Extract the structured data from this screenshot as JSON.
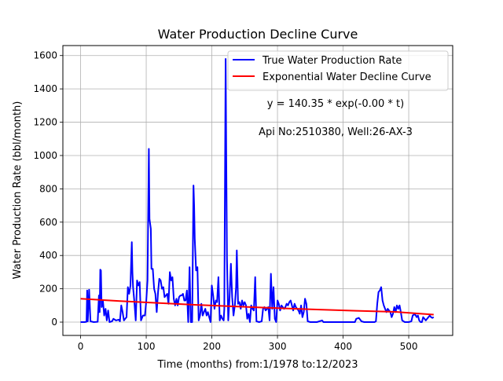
{
  "chart_data": {
    "type": "line",
    "title": "Water Production Decline Curve",
    "xlabel": "Time (months) from:1/1978 to:12/2023",
    "ylabel": "Water Production Rate (bbl/month)",
    "xlim": [
      -27,
      567
    ],
    "ylim": [
      -80,
      1660
    ],
    "xticks": [
      0,
      100,
      200,
      300,
      400,
      500
    ],
    "yticks": [
      0,
      200,
      400,
      600,
      800,
      1000,
      1200,
      1400,
      1600
    ],
    "grid": true,
    "legend_position": "top-right",
    "series": [
      {
        "name": "True Water Production Rate",
        "color": "#0000ff",
        "points": [
          [
            0,
            0
          ],
          [
            6,
            0
          ],
          [
            9,
            2
          ],
          [
            10,
            190
          ],
          [
            11,
            5
          ],
          [
            13,
            195
          ],
          [
            15,
            5
          ],
          [
            20,
            0
          ],
          [
            26,
            2
          ],
          [
            28,
            160
          ],
          [
            29,
            60
          ],
          [
            30,
            315
          ],
          [
            31,
            310
          ],
          [
            32,
            90
          ],
          [
            34,
            130
          ],
          [
            36,
            40
          ],
          [
            38,
            80
          ],
          [
            40,
            10
          ],
          [
            42,
            70
          ],
          [
            44,
            0
          ],
          [
            48,
            5
          ],
          [
            50,
            20
          ],
          [
            54,
            10
          ],
          [
            58,
            15
          ],
          [
            60,
            5
          ],
          [
            62,
            100
          ],
          [
            64,
            60
          ],
          [
            66,
            10
          ],
          [
            68,
            20
          ],
          [
            70,
            30
          ],
          [
            72,
            210
          ],
          [
            74,
            170
          ],
          [
            76,
            220
          ],
          [
            78,
            480
          ],
          [
            79,
            300
          ],
          [
            80,
            210
          ],
          [
            82,
            120
          ],
          [
            84,
            10
          ],
          [
            86,
            250
          ],
          [
            88,
            220
          ],
          [
            90,
            240
          ],
          [
            92,
            10
          ],
          [
            95,
            40
          ],
          [
            98,
            40
          ],
          [
            100,
            120
          ],
          [
            102,
            250
          ],
          [
            104,
            1040
          ],
          [
            105,
            620
          ],
          [
            107,
            560
          ],
          [
            108,
            320
          ],
          [
            110,
            320
          ],
          [
            112,
            200
          ],
          [
            114,
            170
          ],
          [
            116,
            60
          ],
          [
            118,
            180
          ],
          [
            120,
            260
          ],
          [
            122,
            250
          ],
          [
            124,
            200
          ],
          [
            126,
            210
          ],
          [
            128,
            150
          ],
          [
            130,
            160
          ],
          [
            132,
            170
          ],
          [
            134,
            110
          ],
          [
            136,
            300
          ],
          [
            138,
            250
          ],
          [
            140,
            270
          ],
          [
            142,
            140
          ],
          [
            144,
            100
          ],
          [
            146,
            140
          ],
          [
            148,
            100
          ],
          [
            150,
            150
          ],
          [
            152,
            160
          ],
          [
            154,
            160
          ],
          [
            156,
            170
          ],
          [
            158,
            130
          ],
          [
            160,
            130
          ],
          [
            162,
            190
          ],
          [
            164,
            0
          ],
          [
            166,
            330
          ],
          [
            168,
            0
          ],
          [
            170,
            0
          ],
          [
            172,
            820
          ],
          [
            173,
            700
          ],
          [
            174,
            500
          ],
          [
            176,
            310
          ],
          [
            178,
            330
          ],
          [
            180,
            10
          ],
          [
            182,
            40
          ],
          [
            184,
            110
          ],
          [
            186,
            40
          ],
          [
            188,
            60
          ],
          [
            190,
            80
          ],
          [
            192,
            40
          ],
          [
            194,
            60
          ],
          [
            196,
            30
          ],
          [
            198,
            0
          ],
          [
            200,
            220
          ],
          [
            202,
            160
          ],
          [
            204,
            80
          ],
          [
            206,
            130
          ],
          [
            208,
            120
          ],
          [
            210,
            270
          ],
          [
            212,
            10
          ],
          [
            214,
            40
          ],
          [
            216,
            20
          ],
          [
            218,
            10
          ],
          [
            219,
            80
          ],
          [
            221,
            1580
          ],
          [
            222,
            980
          ],
          [
            223,
            380
          ],
          [
            225,
            10
          ],
          [
            227,
            150
          ],
          [
            229,
            350
          ],
          [
            231,
            150
          ],
          [
            233,
            40
          ],
          [
            235,
            100
          ],
          [
            237,
            210
          ],
          [
            238,
            430
          ],
          [
            240,
            110
          ],
          [
            242,
            120
          ],
          [
            244,
            80
          ],
          [
            246,
            130
          ],
          [
            248,
            100
          ],
          [
            250,
            120
          ],
          [
            252,
            100
          ],
          [
            254,
            20
          ],
          [
            256,
            50
          ],
          [
            258,
            0
          ],
          [
            260,
            100
          ],
          [
            262,
            80
          ],
          [
            264,
            70
          ],
          [
            266,
            270
          ],
          [
            268,
            5
          ],
          [
            272,
            0
          ],
          [
            276,
            5
          ],
          [
            278,
            80
          ],
          [
            280,
            90
          ],
          [
            282,
            70
          ],
          [
            284,
            80
          ],
          [
            286,
            90
          ],
          [
            288,
            10
          ],
          [
            290,
            290
          ],
          [
            292,
            80
          ],
          [
            294,
            210
          ],
          [
            296,
            20
          ],
          [
            298,
            0
          ],
          [
            300,
            130
          ],
          [
            302,
            110
          ],
          [
            304,
            70
          ],
          [
            306,
            100
          ],
          [
            308,
            90
          ],
          [
            310,
            80
          ],
          [
            312,
            90
          ],
          [
            314,
            110
          ],
          [
            316,
            100
          ],
          [
            318,
            120
          ],
          [
            320,
            130
          ],
          [
            322,
            100
          ],
          [
            324,
            70
          ],
          [
            326,
            110
          ],
          [
            328,
            90
          ],
          [
            330,
            80
          ],
          [
            332,
            70
          ],
          [
            334,
            50
          ],
          [
            336,
            100
          ],
          [
            338,
            30
          ],
          [
            340,
            60
          ],
          [
            342,
            140
          ],
          [
            344,
            110
          ],
          [
            346,
            5
          ],
          [
            350,
            0
          ],
          [
            360,
            0
          ],
          [
            368,
            10
          ],
          [
            370,
            0
          ],
          [
            380,
            0
          ],
          [
            390,
            0
          ],
          [
            400,
            0
          ],
          [
            410,
            0
          ],
          [
            418,
            0
          ],
          [
            420,
            20
          ],
          [
            424,
            25
          ],
          [
            428,
            5
          ],
          [
            432,
            0
          ],
          [
            440,
            0
          ],
          [
            448,
            0
          ],
          [
            450,
            5
          ],
          [
            452,
            110
          ],
          [
            454,
            180
          ],
          [
            456,
            190
          ],
          [
            458,
            210
          ],
          [
            460,
            130
          ],
          [
            462,
            100
          ],
          [
            464,
            80
          ],
          [
            466,
            60
          ],
          [
            468,
            80
          ],
          [
            470,
            70
          ],
          [
            472,
            60
          ],
          [
            474,
            30
          ],
          [
            476,
            50
          ],
          [
            478,
            90
          ],
          [
            480,
            60
          ],
          [
            482,
            100
          ],
          [
            484,
            80
          ],
          [
            486,
            100
          ],
          [
            488,
            60
          ],
          [
            490,
            10
          ],
          [
            494,
            0
          ],
          [
            500,
            0
          ],
          [
            504,
            5
          ],
          [
            506,
            40
          ],
          [
            508,
            45
          ],
          [
            510,
            45
          ],
          [
            512,
            30
          ],
          [
            514,
            40
          ],
          [
            516,
            10
          ],
          [
            518,
            0
          ],
          [
            520,
            0
          ],
          [
            522,
            30
          ],
          [
            524,
            20
          ],
          [
            526,
            10
          ],
          [
            528,
            20
          ],
          [
            530,
            30
          ],
          [
            532,
            40
          ],
          [
            534,
            30
          ],
          [
            536,
            25
          ],
          [
            538,
            30
          ]
        ]
      },
      {
        "name": "Exponential Water Decline Curve",
        "color": "#ff0000",
        "points": [
          [
            0,
            140.35
          ],
          [
            60,
            126.6
          ],
          [
            120,
            114.2
          ],
          [
            180,
            103.0
          ],
          [
            240,
            92.9
          ],
          [
            300,
            83.8
          ],
          [
            360,
            75.6
          ],
          [
            420,
            68.2
          ],
          [
            480,
            61.5
          ],
          [
            538,
            45
          ]
        ]
      }
    ],
    "annotations": [
      "y = 140.35 * exp(-0.00 * t)",
      "Api No:2510380, Well:26-AX-3"
    ]
  }
}
